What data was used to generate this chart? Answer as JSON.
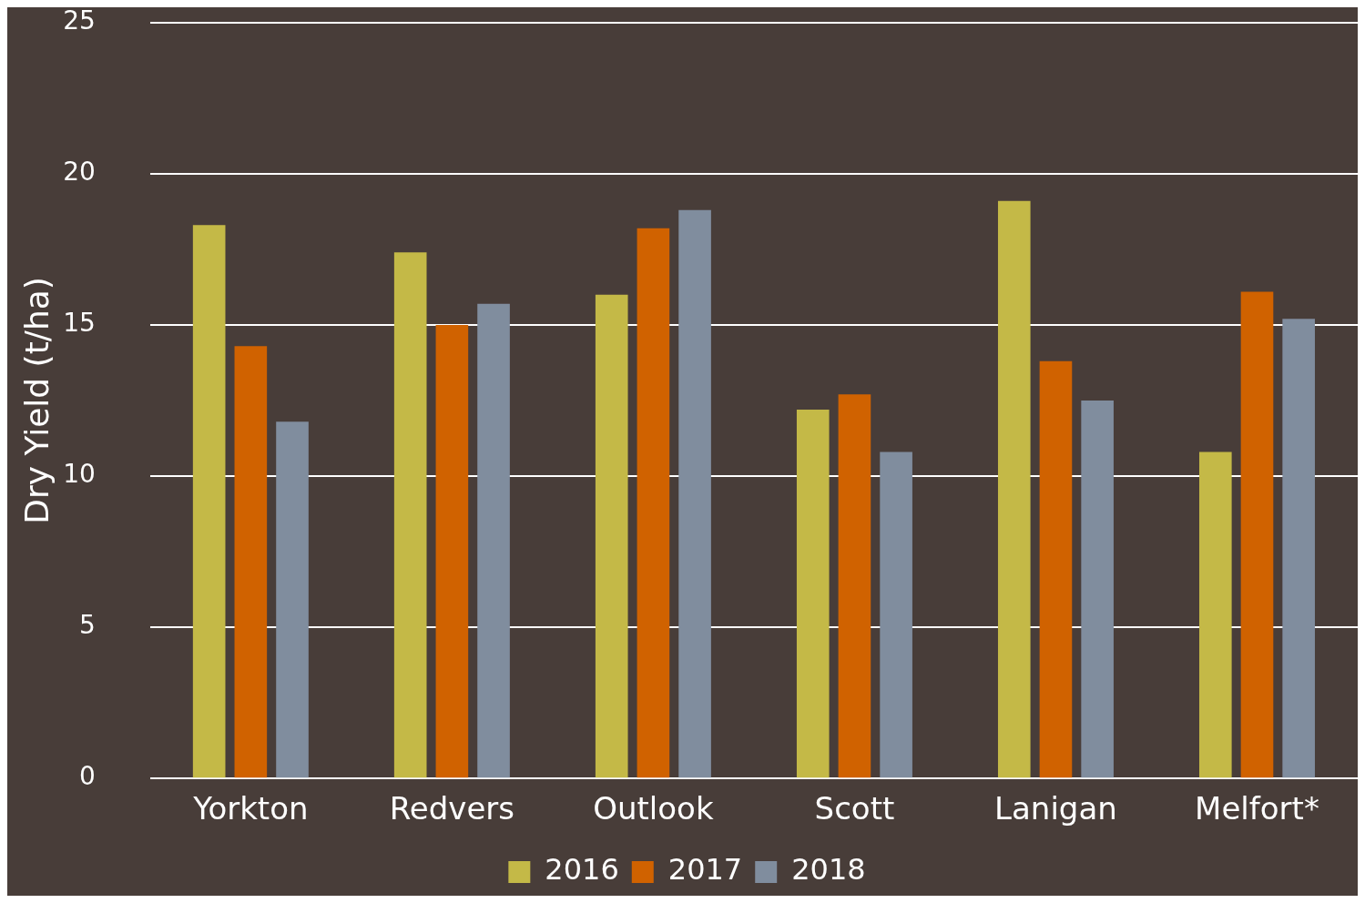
{
  "chart_data": {
    "type": "bar",
    "ylabel": "Dry Yield (t/ha)",
    "categories": [
      "Yorkton",
      "Redvers",
      "Outlook",
      "Scott",
      "Lanigan",
      "Melfort*"
    ],
    "series": [
      {
        "name": "2016",
        "color": "#c4b947",
        "values": [
          18.3,
          17.4,
          16.0,
          12.2,
          19.1,
          10.8
        ]
      },
      {
        "name": "2017",
        "color": "#d06200",
        "values": [
          14.3,
          15.0,
          18.2,
          12.7,
          13.8,
          16.1
        ]
      },
      {
        "name": "2018",
        "color": "#808d9e",
        "values": [
          11.8,
          15.7,
          18.8,
          10.8,
          12.5,
          15.2
        ]
      }
    ],
    "ylim": [
      0,
      25
    ],
    "yticks": [
      0,
      5,
      10,
      15,
      20,
      25
    ],
    "grid": "y",
    "legend": "bottom"
  }
}
